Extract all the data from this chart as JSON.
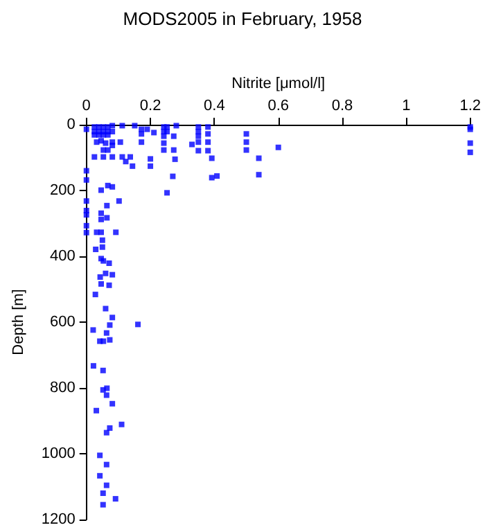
{
  "chart_data": {
    "type": "scatter",
    "title": "MODS2005 in February, 1958",
    "xlabel": "Nitrite [μmol/l]",
    "ylabel": "Depth [m]",
    "marker": "square",
    "grid": false,
    "xlim": [
      0,
      1.2
    ],
    "xticks": [
      0,
      0.2,
      0.4,
      0.6,
      0.8,
      1,
      1.2
    ],
    "ylim": [
      1200,
      0
    ],
    "yticks": [
      0,
      200,
      400,
      600,
      800,
      1000,
      1200
    ],
    "series": [
      {
        "color": "#0000ff",
        "x": [
          0,
          0.025,
          0.039,
          0.053,
          0.067,
          0.025,
          0.039,
          0.053,
          0.067,
          0.025,
          0.039,
          0.053,
          0.067,
          0.081,
          0.081,
          0.081,
          0.112,
          0.151,
          0.172,
          0.172,
          0.172,
          0.19,
          0.211,
          0.242,
          0.242,
          0.242,
          0.242,
          0.242,
          0.252,
          0.252,
          0.273,
          0.273,
          0.281,
          0.33,
          0.35,
          0.35,
          0.35,
          0.35,
          0.35,
          0.38,
          0.38,
          0.38,
          0.38,
          0.392,
          0.408,
          0.392,
          0.5,
          0.5,
          0.5,
          0.539,
          0.539,
          0.6,
          1.2,
          1.2,
          1.2,
          1.2,
          0.032,
          0.046,
          0.06,
          0.081,
          0.106,
          0.053,
          0.067,
          0.025,
          0.053,
          0.081,
          0.112,
          0.137,
          0.2,
          0.2,
          0.144,
          0.123,
          0.277,
          0.27,
          0.252,
          0,
          0,
          0,
          0,
          0,
          0,
          0,
          0.046,
          0.067,
          0.081,
          0.064,
          0.102,
          0.046,
          0.046,
          0.064,
          0.092,
          0.032,
          0.046,
          0.05,
          0.05,
          0.029,
          0.046,
          0.053,
          0.071,
          0.043,
          0.06,
          0.081,
          0.046,
          0.071,
          0.028,
          0.06,
          0.081,
          0.021,
          0.161,
          0.073,
          0.063,
          0.042,
          0.053,
          0.073,
          0.022,
          0.052,
          0.052,
          0.064,
          0.063,
          0.081,
          0.031,
          0.11,
          0.073,
          0.063,
          0.042,
          0.063,
          0.042,
          0.063,
          0.052,
          0.091,
          0.052
        ],
        "values": [
          14,
          7,
          7,
          7,
          7,
          21,
          21,
          21,
          21,
          31,
          31,
          31,
          31,
          3,
          21,
          63,
          3,
          3,
          14,
          28,
          53,
          14,
          24,
          7,
          21,
          35,
          56,
          77,
          7,
          21,
          35,
          77,
          3,
          60,
          7,
          21,
          35,
          53,
          79,
          7,
          28,
          53,
          79,
          102,
          156,
          161,
          28,
          53,
          77,
          102,
          152,
          69,
          7,
          14,
          56,
          84,
          53,
          49,
          56,
          53,
          53,
          77,
          77,
          98,
          98,
          98,
          98,
          98,
          104,
          126,
          126,
          112,
          105,
          157,
          207,
          140,
          168,
          232,
          261,
          274,
          307,
          328,
          199,
          185,
          189,
          246,
          232,
          269,
          288,
          283,
          327,
          327,
          327,
          351,
          372,
          379,
          407,
          414,
          421,
          463,
          452,
          456,
          484,
          488,
          516,
          559,
          586,
          624,
          607,
          609,
          633,
          658,
          658,
          654,
          733,
          747,
          806,
          801,
          822,
          848,
          869,
          911,
          922,
          936,
          1005,
          1033,
          1067,
          1096,
          1120,
          1137,
          1155
        ]
      }
    ]
  }
}
